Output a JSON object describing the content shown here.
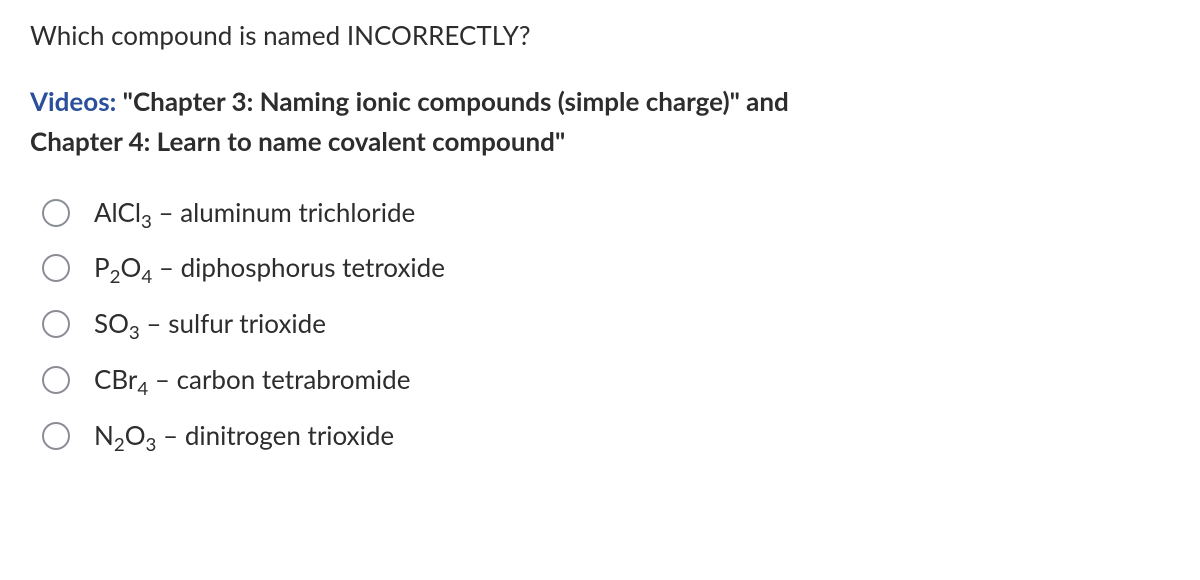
{
  "question": "Which compound is named INCORRECTLY?",
  "refs": {
    "prefix": "Videos:",
    "rest_line1": " \"Chapter 3: Naming ionic compounds (simple charge)\" and",
    "line2": "Chapter 4:  Learn to name covalent compound\""
  },
  "options": [
    {
      "formula_html": "AlCl<sub>3</sub>",
      "name": "aluminum trichloride"
    },
    {
      "formula_html": "P<sub>2</sub>O<sub>4</sub>",
      "name": "diphosphorus tetroxide"
    },
    {
      "formula_html": "SO<sub>3</sub>",
      "name": "sulfur trioxide"
    },
    {
      "formula_html": "CBr<sub>4</sub>",
      "name": "carbon tetrabromide"
    },
    {
      "formula_html": "N<sub>2</sub>O<sub>3</sub>",
      "name": "dinitrogen trioxide"
    }
  ],
  "colors": {
    "text": "#2d2d2d",
    "link": "#2b4f9b",
    "radio_border": "#8a8e94",
    "background": "#ffffff"
  }
}
